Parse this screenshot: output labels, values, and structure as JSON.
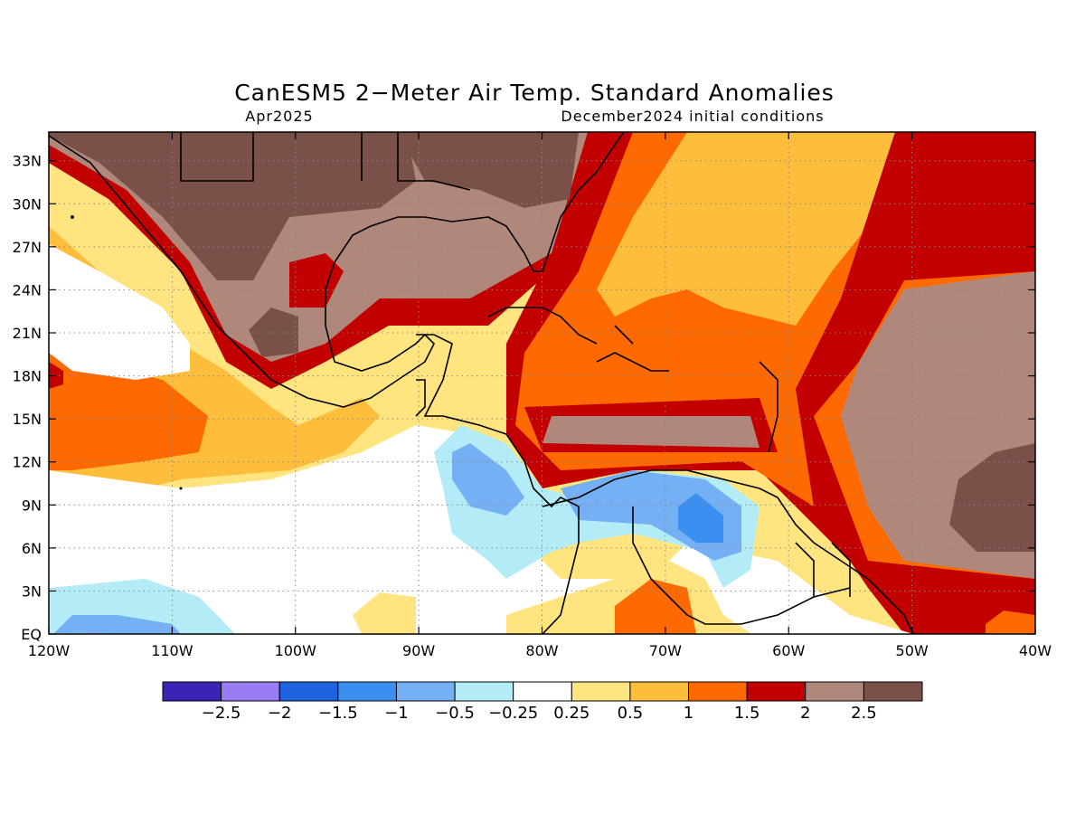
{
  "title": "CanESM5 2−Meter Air Temp. Standard Anomalies",
  "subtitle_left": "Apr2025",
  "subtitle_right": "December2024 initial conditions",
  "map": {
    "lat_labels": [
      "33N",
      "30N",
      "27N",
      "24N",
      "21N",
      "18N",
      "15N",
      "12N",
      "9N",
      "6N",
      "3N",
      "EQ"
    ],
    "lon_labels": [
      "120W",
      "110W",
      "100W",
      "90W",
      "80W",
      "70W",
      "60W",
      "50W",
      "40W"
    ],
    "lon_range": [
      -120,
      -40
    ],
    "lat_range": [
      0,
      35
    ],
    "gridlines": "dotted"
  },
  "colorbar": {
    "colors": [
      "#3b23b5",
      "#9a7df2",
      "#1f63e0",
      "#3b8ff0",
      "#74b0f3",
      "#b3ecf6",
      "#ffffff",
      "#ffe47f",
      "#ffbd3c",
      "#ff6a00",
      "#c20000",
      "#b0877b",
      "#7a5148"
    ],
    "labels": [
      "−2.5",
      "−2",
      "−1.5",
      "−1",
      "−0.5",
      "−0.25",
      "0.25",
      "0.5",
      "1",
      "1.5",
      "2",
      "2.5"
    ]
  }
}
